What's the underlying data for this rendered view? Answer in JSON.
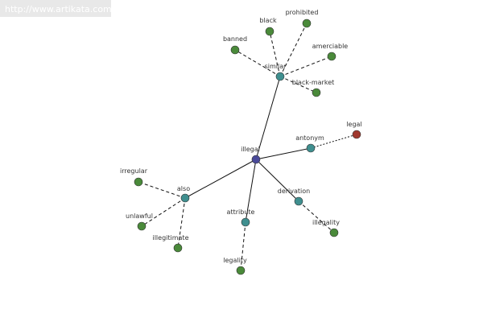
{
  "header": {
    "url": "http://www.artikata.com"
  },
  "nodes": [
    {
      "label": "illegal"
    },
    {
      "label": "similar"
    },
    {
      "label": "antonym"
    },
    {
      "label": "also"
    },
    {
      "label": "attribute"
    },
    {
      "label": "derivation"
    },
    {
      "label": "black"
    },
    {
      "label": "prohibited"
    },
    {
      "label": "banned"
    },
    {
      "label": "amerciable"
    },
    {
      "label": "black-market"
    },
    {
      "label": "legal"
    },
    {
      "label": "irregular"
    },
    {
      "label": "unlawful"
    },
    {
      "label": "illegitimate"
    },
    {
      "label": "legality"
    },
    {
      "label": "illegality"
    }
  ]
}
